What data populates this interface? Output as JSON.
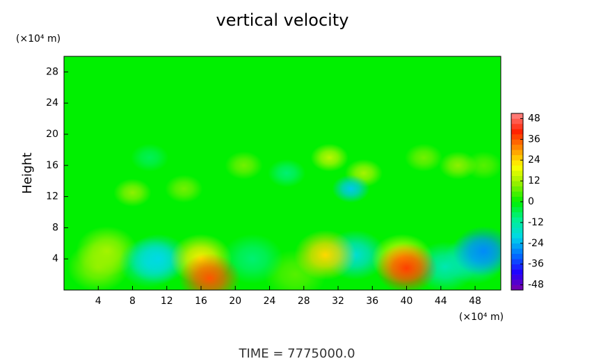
{
  "chart_data": {
    "type": "contour",
    "title": "vertical velocity",
    "y_label": "Height",
    "y_unit": "(×10⁴ m)",
    "x_unit": "(×10⁴ m)",
    "annotation": "TIME = 7775000.0",
    "xlim": [
      0,
      51
    ],
    "xticks": [
      4,
      8,
      12,
      16,
      20,
      24,
      28,
      32,
      36,
      40,
      44,
      48
    ],
    "ylim": [
      0,
      30
    ],
    "yticks": [
      4,
      8,
      12,
      16,
      20,
      24,
      28
    ],
    "clim": [
      -51,
      51
    ],
    "cticks": [
      48,
      36,
      24,
      12,
      0,
      -12,
      -24,
      -36,
      -48
    ],
    "colormap": [
      "#7a00a8",
      "#2000ff",
      "#0070ff",
      "#00d8e8",
      "#00f090",
      "#00f000",
      "#90f000",
      "#ffff00",
      "#ff9000",
      "#ff2000",
      "#ff8888"
    ],
    "x": [
      5,
      4,
      11,
      10,
      16,
      17,
      22,
      30.5,
      34,
      40,
      39.5,
      44.5,
      49,
      48,
      27,
      8,
      14,
      21,
      31,
      35,
      42,
      46,
      49,
      10,
      26,
      33.5
    ],
    "y": [
      5,
      3,
      4,
      3.5,
      4,
      1.5,
      4,
      4.5,
      4.5,
      2.8,
      4,
      3,
      5,
      4,
      2,
      12.5,
      13,
      16,
      17,
      15,
      17,
      16,
      16,
      17,
      15,
      13
    ],
    "values": [
      12,
      10,
      -20,
      -14,
      22,
      36,
      -8,
      24,
      -18,
      38,
      20,
      -14,
      -28,
      -16,
      6,
      10,
      8,
      8,
      14,
      12,
      8,
      10,
      6,
      -6,
      -8,
      -22
    ]
  }
}
